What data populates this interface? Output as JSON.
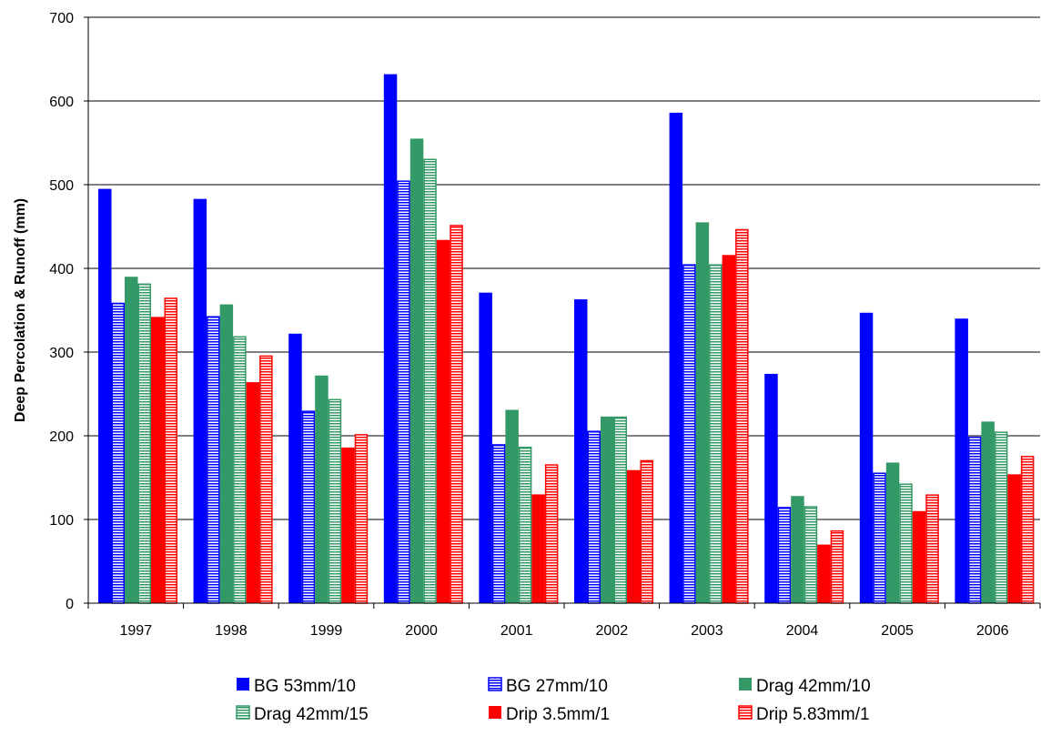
{
  "chart_data": {
    "type": "bar",
    "title": "",
    "xlabel": "",
    "ylabel": "Deep Percolation & Runoff (mm)",
    "ylim": [
      0,
      700
    ],
    "yticks": [
      0,
      100,
      200,
      300,
      400,
      500,
      600,
      700
    ],
    "grid": true,
    "legend_position": "bottom",
    "categories": [
      "1997",
      "1998",
      "1999",
      "2000",
      "2001",
      "2002",
      "2003",
      "2004",
      "2005",
      "2006"
    ],
    "series": [
      {
        "name": "BG 53mm/10",
        "color": "#0000FF",
        "pattern": "solid",
        "values": [
          495,
          483,
          322,
          632,
          371,
          363,
          586,
          274,
          347,
          340
        ]
      },
      {
        "name": "BG 27mm/10",
        "color": "#0000FF",
        "pattern": "hatched",
        "values": [
          359,
          343,
          230,
          505,
          190,
          206,
          405,
          115,
          156,
          199
        ]
      },
      {
        "name": "Drag 42mm/10",
        "color": "#339966",
        "pattern": "solid",
        "values": [
          390,
          357,
          272,
          555,
          231,
          223,
          455,
          128,
          168,
          217
        ]
      },
      {
        "name": "Drag 42mm/15",
        "color": "#339966",
        "pattern": "hatched",
        "values": [
          382,
          319,
          244,
          531,
          187,
          223,
          405,
          116,
          143,
          205
        ]
      },
      {
        "name": "Drip 3.5mm/1",
        "color": "#FF0000",
        "pattern": "solid",
        "values": [
          342,
          264,
          186,
          434,
          130,
          159,
          416,
          70,
          110,
          154
        ]
      },
      {
        "name": "Drip 5.83mm/1",
        "color": "#FF0000",
        "pattern": "hatched",
        "values": [
          365,
          296,
          202,
          452,
          166,
          171,
          447,
          87,
          130,
          176
        ]
      }
    ]
  }
}
